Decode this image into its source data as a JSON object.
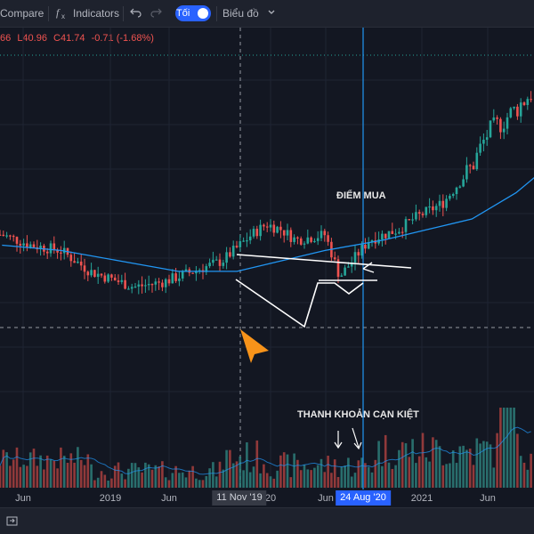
{
  "toolbar": {
    "compare_label": "Compare",
    "indicators_label": "Indicators",
    "toggle_label": "Tối",
    "chart_type_label": "Biểu đồ"
  },
  "legend": {
    "truncated_value": "66",
    "low": "L40.96",
    "close": "C41.74",
    "change": "-0.71 (-1.68%)"
  },
  "annotations": {
    "buy_point": "ĐIỂM MUA",
    "volume_dryup": "THANH KHOẢN CẠN KIỆT"
  },
  "x_axis": {
    "ticks": [
      "Jun",
      "2019",
      "Jun",
      "20",
      "Jun",
      "2021",
      "Jun"
    ],
    "crosshair_label": "11 Nov '19",
    "highlight_label": "24 Aug '20"
  },
  "colors": {
    "background": "#131722",
    "up_candle": "#26a69a",
    "down_candle": "#ef5350",
    "moving_average": "#2196f3",
    "highlight_line": "#2196f3",
    "crosshair_label_bg": "#363a45",
    "highlight_label_bg": "#2962ff",
    "arrow_marker": "#f7931a"
  },
  "icons": {
    "compare": "compare-icon",
    "indicators": "fx-indicators-icon",
    "undo": "undo-icon",
    "redo": "redo-icon",
    "dropdown": "chevron-down-icon",
    "footer": "panel-icon"
  },
  "chart_data": {
    "type": "candlestick",
    "period": "weekly",
    "x_range": [
      "2018-03",
      "2021-09"
    ],
    "price_range": [
      30,
      92
    ],
    "price_series": [
      {
        "date": "2018-04",
        "close": 54
      },
      {
        "date": "2018-06",
        "close": 52
      },
      {
        "date": "2018-08",
        "close": 51
      },
      {
        "date": "2018-10",
        "close": 47
      },
      {
        "date": "2018-12",
        "close": 45
      },
      {
        "date": "2019-01",
        "close": 44
      },
      {
        "date": "2019-03",
        "close": 45
      },
      {
        "date": "2019-05",
        "close": 47
      },
      {
        "date": "2019-07",
        "close": 49
      },
      {
        "date": "2019-09",
        "close": 54
      },
      {
        "date": "2019-10",
        "close": 56
      },
      {
        "date": "2019-11",
        "close": 55
      },
      {
        "date": "2019-12",
        "close": 53
      },
      {
        "date": "2020-02",
        "close": 54
      },
      {
        "date": "2020-03",
        "close": 46
      },
      {
        "date": "2020-05",
        "close": 53
      },
      {
        "date": "2020-07",
        "close": 55
      },
      {
        "date": "2020-08",
        "close": 57
      },
      {
        "date": "2020-10",
        "close": 60
      },
      {
        "date": "2020-12",
        "close": 67
      },
      {
        "date": "2021-01",
        "close": 73
      },
      {
        "date": "2021-03",
        "close": 78
      },
      {
        "date": "2021-05",
        "close": 84
      },
      {
        "date": "2021-07",
        "close": 88
      },
      {
        "date": "2021-09",
        "close": 87
      }
    ],
    "moving_average": [
      {
        "date": "2018-04",
        "value": 52
      },
      {
        "date": "2018-08",
        "value": 51
      },
      {
        "date": "2018-12",
        "value": 49
      },
      {
        "date": "2019-04",
        "value": 47
      },
      {
        "date": "2019-08",
        "value": 47
      },
      {
        "date": "2019-11",
        "value": 49
      },
      {
        "date": "2020-02",
        "value": 51
      },
      {
        "date": "2020-06",
        "value": 53
      },
      {
        "date": "2020-09",
        "value": 55
      },
      {
        "date": "2020-12",
        "value": 57
      },
      {
        "date": "2021-03",
        "value": 62
      },
      {
        "date": "2021-06",
        "value": 69
      },
      {
        "date": "2021-09",
        "value": 76
      }
    ],
    "volume_trend": "declining into Aug 2020, expanding afterwards",
    "annotations": [
      "ĐIỂM MUA",
      "THANH KHOẢN CẠN KIỆT"
    ]
  }
}
